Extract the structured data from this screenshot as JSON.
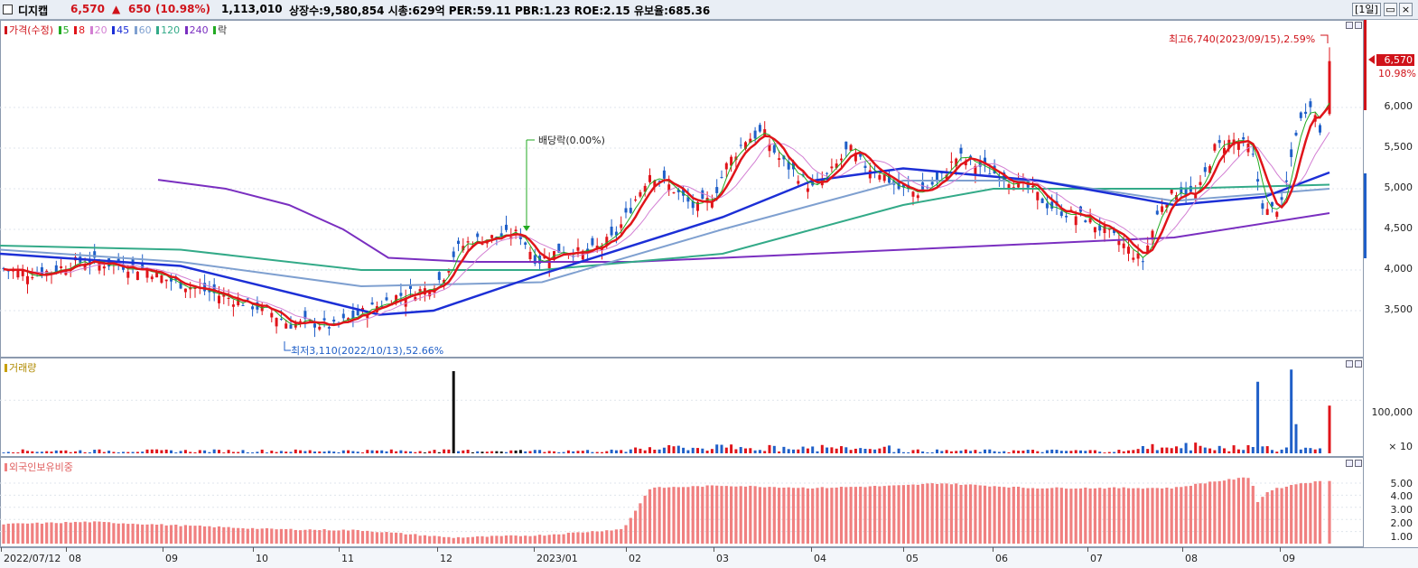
{
  "header": {
    "stock_name": "디지캡",
    "price": "6,570",
    "change_arrow": "▲",
    "change": "650",
    "change_pct": "(10.98%)",
    "volume": "1,113,010",
    "info": "상장수:9,580,854 시총:629억 PER:59.11 PBR:1.23 ROE:2.15 유보율:685.36",
    "period_button": "[1일]"
  },
  "price_panel": {
    "legend": {
      "price_label": "가격(수정)",
      "ma5": "5",
      "ma8": "8",
      "ma20": "20",
      "ma45": "45",
      "ma60": "60",
      "ma120": "120",
      "ma240": "240",
      "ex_label": "락"
    },
    "y_ticks": [
      "6,000",
      "5,500",
      "5,000",
      "4,500",
      "4,000",
      "3,500"
    ],
    "current_price_tag": "6,570",
    "current_pct_tag": "10.98%",
    "annotations": {
      "high": "최고6,740(2023/09/15),2.59%",
      "low": "최저3,110(2022/10/13),52.66%",
      "dividend": "배당락(0.00%)"
    }
  },
  "volume_panel": {
    "title": "거래량",
    "y_ticks": [
      "100,000",
      "× 10"
    ]
  },
  "foreign_panel": {
    "title": "외국인보유비중",
    "y_ticks": [
      "5.00",
      "4.00",
      "3.00",
      "2.00",
      "1.00"
    ]
  },
  "x_axis": {
    "labels": [
      "2022/07/12",
      "08",
      "09",
      "10",
      "11",
      "12",
      "2023/01",
      "02",
      "03",
      "04",
      "05",
      "06",
      "07",
      "08",
      "09"
    ]
  },
  "colors": {
    "up": "#e0141a",
    "down": "#1f5fc8",
    "ma5": "#22aa22",
    "ma8": "#e0141a",
    "ma20": "#d37fd3",
    "ma45": "#1c2fd6",
    "ma60": "#7fa0d0",
    "ma120": "#33aa88",
    "ma240": "#7a2fc0",
    "foreign": "#f08080"
  },
  "chart_data": {
    "type": "candlestick",
    "ylim": [
      3000,
      7000
    ],
    "anchors": {
      "start": "2022/07/12",
      "end": "2023/09/15",
      "high": 6740,
      "high_date": "2023/09/15",
      "low": 3110,
      "low_date": "2022/10/13",
      "last_close": 6570
    },
    "close_path": [
      [
        0,
        4020
      ],
      [
        20,
        3980
      ],
      [
        40,
        3960
      ],
      [
        60,
        4000
      ],
      [
        85,
        4100
      ],
      [
        110,
        4090
      ],
      [
        140,
        4050
      ],
      [
        165,
        4000
      ],
      [
        185,
        3880
      ],
      [
        210,
        3800
      ],
      [
        240,
        3700
      ],
      [
        270,
        3600
      ],
      [
        300,
        3480
      ],
      [
        320,
        3330
      ],
      [
        345,
        3350
      ],
      [
        370,
        3300
      ],
      [
        390,
        3420
      ],
      [
        410,
        3520
      ],
      [
        440,
        3680
      ],
      [
        470,
        3760
      ],
      [
        490,
        3900
      ],
      [
        505,
        4250
      ],
      [
        520,
        4350
      ],
      [
        545,
        4400
      ],
      [
        575,
        4450
      ],
      [
        595,
        4100
      ],
      [
        620,
        4250
      ],
      [
        650,
        4200
      ],
      [
        680,
        4400
      ],
      [
        700,
        4800
      ],
      [
        720,
        5200
      ],
      [
        745,
        5000
      ],
      [
        770,
        4750
      ],
      [
        790,
        4900
      ],
      [
        805,
        5300
      ],
      [
        825,
        5600
      ],
      [
        845,
        5700
      ],
      [
        860,
        5400
      ],
      [
        880,
        5200
      ],
      [
        900,
        5000
      ],
      [
        920,
        5200
      ],
      [
        940,
        5500
      ],
      [
        955,
        5300
      ],
      [
        975,
        5200
      ],
      [
        995,
        5000
      ],
      [
        1015,
        4950
      ],
      [
        1040,
        5100
      ],
      [
        1060,
        5400
      ],
      [
        1080,
        5300
      ],
      [
        1100,
        5200
      ],
      [
        1120,
        5100
      ],
      [
        1140,
        5000
      ],
      [
        1160,
        4800
      ],
      [
        1180,
        4700
      ],
      [
        1200,
        4650
      ],
      [
        1220,
        4500
      ],
      [
        1240,
        4350
      ],
      [
        1265,
        4100
      ],
      [
        1285,
        4800
      ],
      [
        1305,
        5000
      ],
      [
        1325,
        4900
      ],
      [
        1345,
        5500
      ],
      [
        1365,
        5600
      ],
      [
        1385,
        5500
      ],
      [
        1400,
        4700
      ],
      [
        1420,
        4800
      ],
      [
        1435,
        5700
      ],
      [
        1450,
        6100
      ],
      [
        1465,
        5600
      ],
      [
        1472,
        6570
      ]
    ],
    "ma240_path": [
      [
        175,
        5110
      ],
      [
        250,
        5000
      ],
      [
        320,
        4800
      ],
      [
        380,
        4500
      ],
      [
        430,
        4150
      ],
      [
        520,
        4100
      ],
      [
        700,
        4100
      ],
      [
        900,
        4200
      ],
      [
        1100,
        4300
      ],
      [
        1300,
        4400
      ],
      [
        1472,
        4700
      ]
    ],
    "ma120_path": [
      [
        0,
        4300
      ],
      [
        200,
        4250
      ],
      [
        400,
        4000
      ],
      [
        600,
        4000
      ],
      [
        800,
        4200
      ],
      [
        1000,
        4800
      ],
      [
        1100,
        5000
      ],
      [
        1300,
        5000
      ],
      [
        1472,
        5050
      ]
    ],
    "ma60_path": [
      [
        0,
        4250
      ],
      [
        200,
        4100
      ],
      [
        400,
        3800
      ],
      [
        600,
        3850
      ],
      [
        800,
        4500
      ],
      [
        1000,
        5100
      ],
      [
        1150,
        5100
      ],
      [
        1300,
        4850
      ],
      [
        1472,
        5000
      ]
    ],
    "ma45_path": [
      [
        0,
        4200
      ],
      [
        200,
        4050
      ],
      [
        420,
        3450
      ],
      [
        480,
        3500
      ],
      [
        600,
        3950
      ],
      [
        800,
        4650
      ],
      [
        900,
        5100
      ],
      [
        1000,
        5250
      ],
      [
        1150,
        5100
      ],
      [
        1300,
        4800
      ],
      [
        1400,
        4900
      ],
      [
        1472,
        5200
      ]
    ],
    "volume_spikes": [
      [
        503,
        155000
      ],
      [
        1391,
        135000
      ],
      [
        1431,
        158000
      ],
      [
        1437,
        55000
      ],
      [
        1472,
        90000
      ]
    ],
    "foreign_ratio_path": [
      [
        0,
        1.6
      ],
      [
        100,
        1.8
      ],
      [
        200,
        1.5
      ],
      [
        300,
        1.2
      ],
      [
        400,
        1.1
      ],
      [
        500,
        0.5
      ],
      [
        600,
        0.7
      ],
      [
        690,
        1.2
      ],
      [
        720,
        4.6
      ],
      [
        800,
        4.8
      ],
      [
        900,
        4.6
      ],
      [
        1000,
        4.8
      ],
      [
        1040,
        5.0
      ],
      [
        1140,
        4.6
      ],
      [
        1300,
        4.6
      ],
      [
        1340,
        5.1
      ],
      [
        1385,
        5.5
      ],
      [
        1392,
        3.4
      ],
      [
        1405,
        4.4
      ],
      [
        1440,
        5.0
      ],
      [
        1472,
        5.2
      ]
    ]
  }
}
